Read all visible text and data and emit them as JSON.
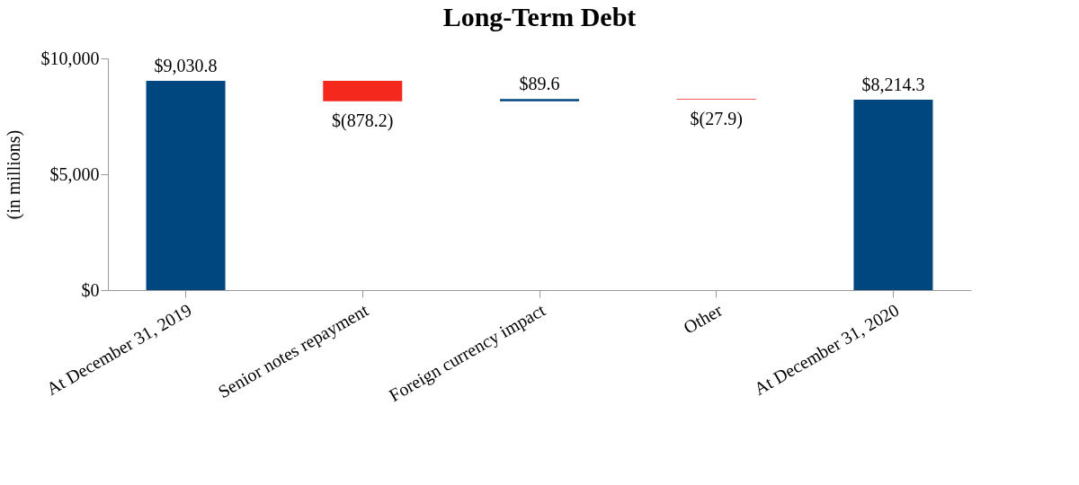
{
  "chart_data": {
    "type": "bar",
    "title": "Long-Term Debt",
    "ylabel": "(in millions)",
    "categories": [
      "At December 31, 2019",
      "Senior notes repayment",
      "Foreign currency impact",
      "Other",
      "At December 31, 2020"
    ],
    "values": [
      9030.8,
      -878.2,
      89.6,
      -27.9,
      8214.3
    ],
    "base": [
      0,
      9030.8,
      8152.6,
      8242.2,
      0
    ],
    "colors": [
      "#00467f",
      "#f5281e",
      "#00467f",
      "#f5281e",
      "#00467f"
    ],
    "value_labels": [
      "$9,030.8",
      "$(878.2)",
      "$89.6",
      "$(27.9)",
      "$8,214.3"
    ],
    "ylim": [
      0,
      10000
    ],
    "yticks": [
      {
        "value": 0,
        "label": "$0"
      },
      {
        "value": 5000,
        "label": "$5,000"
      },
      {
        "value": 10000,
        "label": "$10,000"
      }
    ],
    "grid": false
  }
}
